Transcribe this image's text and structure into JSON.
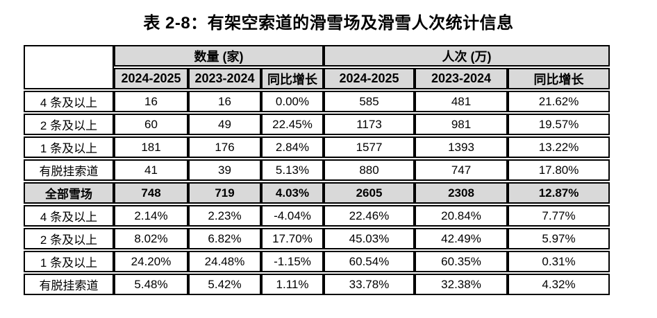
{
  "title": "表 2-8：有架空索道的滑雪场及滑雪人次统计信息",
  "table": {
    "group_headers": [
      {
        "label": "数量 (家)"
      },
      {
        "label": "人次 (万)"
      }
    ],
    "column_headers": [
      "2024-2025",
      "2023-2024",
      "同比增长",
      "2024-2025",
      "2023-2024",
      "同比增长"
    ],
    "rows": [
      {
        "label": "4 条及以上",
        "values": [
          "16",
          "16",
          "0.00%",
          "585",
          "481",
          "21.62%"
        ],
        "emphasis": false
      },
      {
        "label": "2 条及以上",
        "values": [
          "60",
          "49",
          "22.45%",
          "1173",
          "981",
          "19.57%"
        ],
        "emphasis": false
      },
      {
        "label": "1 条及以上",
        "values": [
          "181",
          "176",
          "2.84%",
          "1577",
          "1393",
          "13.22%"
        ],
        "emphasis": false
      },
      {
        "label": "有脱挂索道",
        "values": [
          "41",
          "39",
          "5.13%",
          "880",
          "747",
          "17.80%"
        ],
        "emphasis": false
      },
      {
        "label": "全部雪场",
        "values": [
          "748",
          "719",
          "4.03%",
          "2605",
          "2308",
          "12.87%"
        ],
        "emphasis": true
      },
      {
        "label": "4 条及以上",
        "values": [
          "2.14%",
          "2.23%",
          "-4.04%",
          "22.46%",
          "20.84%",
          "7.77%"
        ],
        "emphasis": false
      },
      {
        "label": "2 条及以上",
        "values": [
          "8.02%",
          "6.82%",
          "17.70%",
          "45.03%",
          "42.49%",
          "5.97%"
        ],
        "emphasis": false
      },
      {
        "label": "1 条及以上",
        "values": [
          "24.20%",
          "24.48%",
          "-1.15%",
          "60.54%",
          "60.35%",
          "0.31%"
        ],
        "emphasis": false
      },
      {
        "label": "有脱挂索道",
        "values": [
          "5.48%",
          "5.42%",
          "1.11%",
          "33.78%",
          "32.38%",
          "4.32%"
        ],
        "emphasis": false
      }
    ],
    "colors": {
      "header_bg": "#d9d9d9",
      "emphasis_bg": "#d9d9d9",
      "border": "#000000",
      "text": "#000000",
      "background": "#ffffff"
    }
  }
}
